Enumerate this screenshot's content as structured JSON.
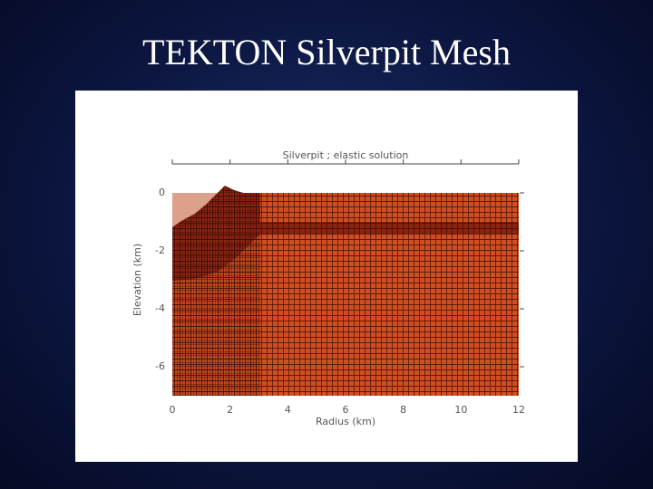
{
  "slide_title": "TEKTON Silverpit Mesh",
  "chart_data": {
    "type": "mesh",
    "title": "Silverpit ; elastic solution",
    "x_label": "Radius (km)",
    "y_label": "Elevation (km)",
    "xlim": [
      0,
      12
    ],
    "xticks": [
      0,
      2,
      4,
      6,
      8,
      10,
      12
    ],
    "ylim": [
      -7,
      1
    ],
    "yticks": [
      0,
      -2,
      -4,
      -6
    ]
  }
}
